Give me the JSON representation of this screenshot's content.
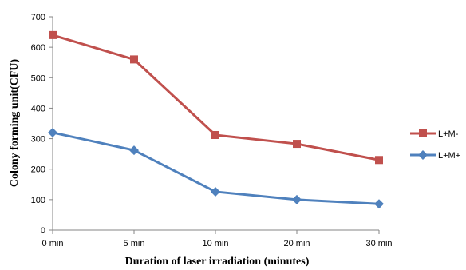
{
  "chart_data": {
    "type": "line",
    "categories": [
      "0 min",
      "5 min",
      "10 min",
      "20 min",
      "30 min"
    ],
    "series": [
      {
        "name": "L+M-",
        "values": [
          640,
          560,
          312,
          283,
          230
        ],
        "color": "#c0504d",
        "marker": "square"
      },
      {
        "name": "L+M+",
        "values": [
          320,
          262,
          126,
          100,
          86
        ],
        "color": "#4f81bd",
        "marker": "diamond"
      }
    ],
    "title": "",
    "xlabel": "Duration of laser irradiation (minutes)",
    "ylabel": "Colony forming  unit(CFU)",
    "ylim": [
      0,
      700
    ],
    "yticks": [
      "0",
      "100",
      "200",
      "300",
      "400",
      "500",
      "600",
      "700"
    ],
    "grid": false,
    "legend_position": "right"
  }
}
